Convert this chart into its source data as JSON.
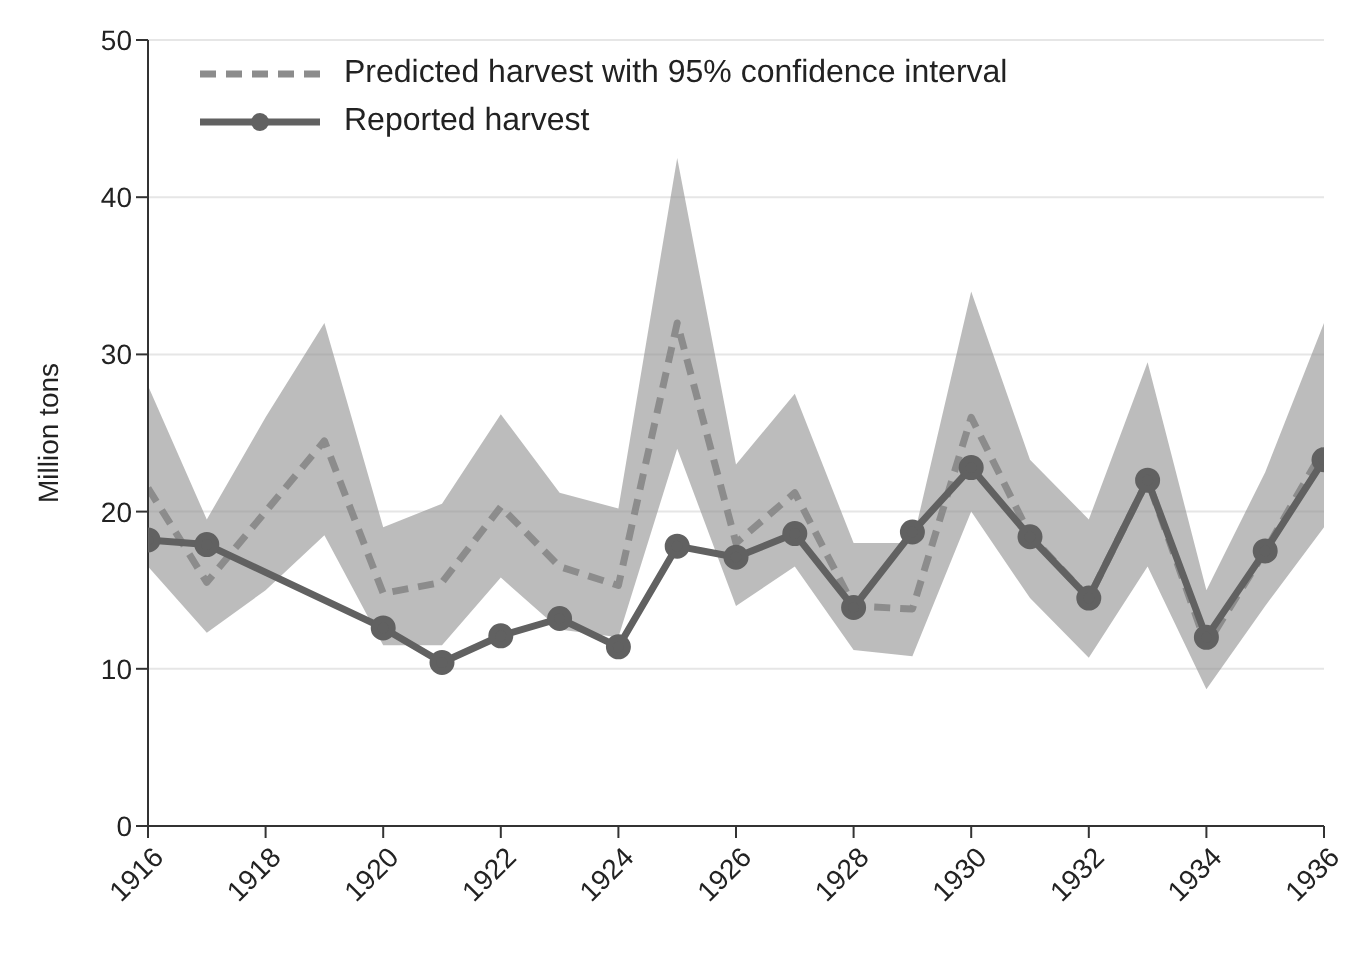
{
  "chart_data": {
    "type": "line",
    "ylabel": "Million tons",
    "x": [
      1916,
      1917,
      1918,
      1919,
      1920,
      1921,
      1922,
      1923,
      1924,
      1925,
      1926,
      1927,
      1928,
      1929,
      1930,
      1931,
      1932,
      1933,
      1934,
      1935,
      1936
    ],
    "series": [
      {
        "name": "Predicted harvest with 95% confidence interval",
        "color": "#8c8c8c",
        "line_style": "dashed",
        "marker": "none",
        "values": [
          21.5,
          15.5,
          20,
          24.5,
          14.8,
          15.5,
          20.3,
          16.5,
          15.3,
          32,
          18,
          21.2,
          14,
          13.8,
          26,
          18.5,
          14.5,
          22,
          11.5,
          17.5,
          24
        ],
        "lower": [
          16.5,
          12.3,
          15,
          18.5,
          11.5,
          11.5,
          15.8,
          12.5,
          12,
          24,
          14,
          16.5,
          11.2,
          10.8,
          20,
          14.5,
          10.7,
          16.5,
          8.7,
          14,
          19
        ],
        "upper": [
          28,
          19.5,
          26,
          32,
          19,
          20.5,
          26.2,
          21.2,
          20.2,
          42.5,
          23,
          27.5,
          18,
          18,
          34,
          23.3,
          19.5,
          29.5,
          15,
          22.5,
          32
        ]
      },
      {
        "name": "Reported harvest",
        "color": "#616161",
        "line_style": "solid",
        "marker": "circle",
        "x": [
          1916,
          1917,
          1920,
          1921,
          1922,
          1923,
          1924,
          1925,
          1926,
          1927,
          1928,
          1929,
          1930,
          1931,
          1932,
          1933,
          1934,
          1935,
          1936
        ],
        "values": [
          18.2,
          17.9,
          12.6,
          10.4,
          12.1,
          13.2,
          11.4,
          17.8,
          17.1,
          18.6,
          13.9,
          18.7,
          22.8,
          18.4,
          14.5,
          22,
          12,
          17.5,
          23.3
        ]
      }
    ],
    "xlim": [
      1916,
      1936
    ],
    "xticks": [
      1916,
      1918,
      1920,
      1922,
      1924,
      1926,
      1928,
      1930,
      1932,
      1934,
      1936
    ],
    "ylim": [
      0,
      50
    ],
    "yticks": [
      0,
      10,
      20,
      30,
      40,
      50
    ],
    "grid": "y",
    "legend": "top left"
  }
}
